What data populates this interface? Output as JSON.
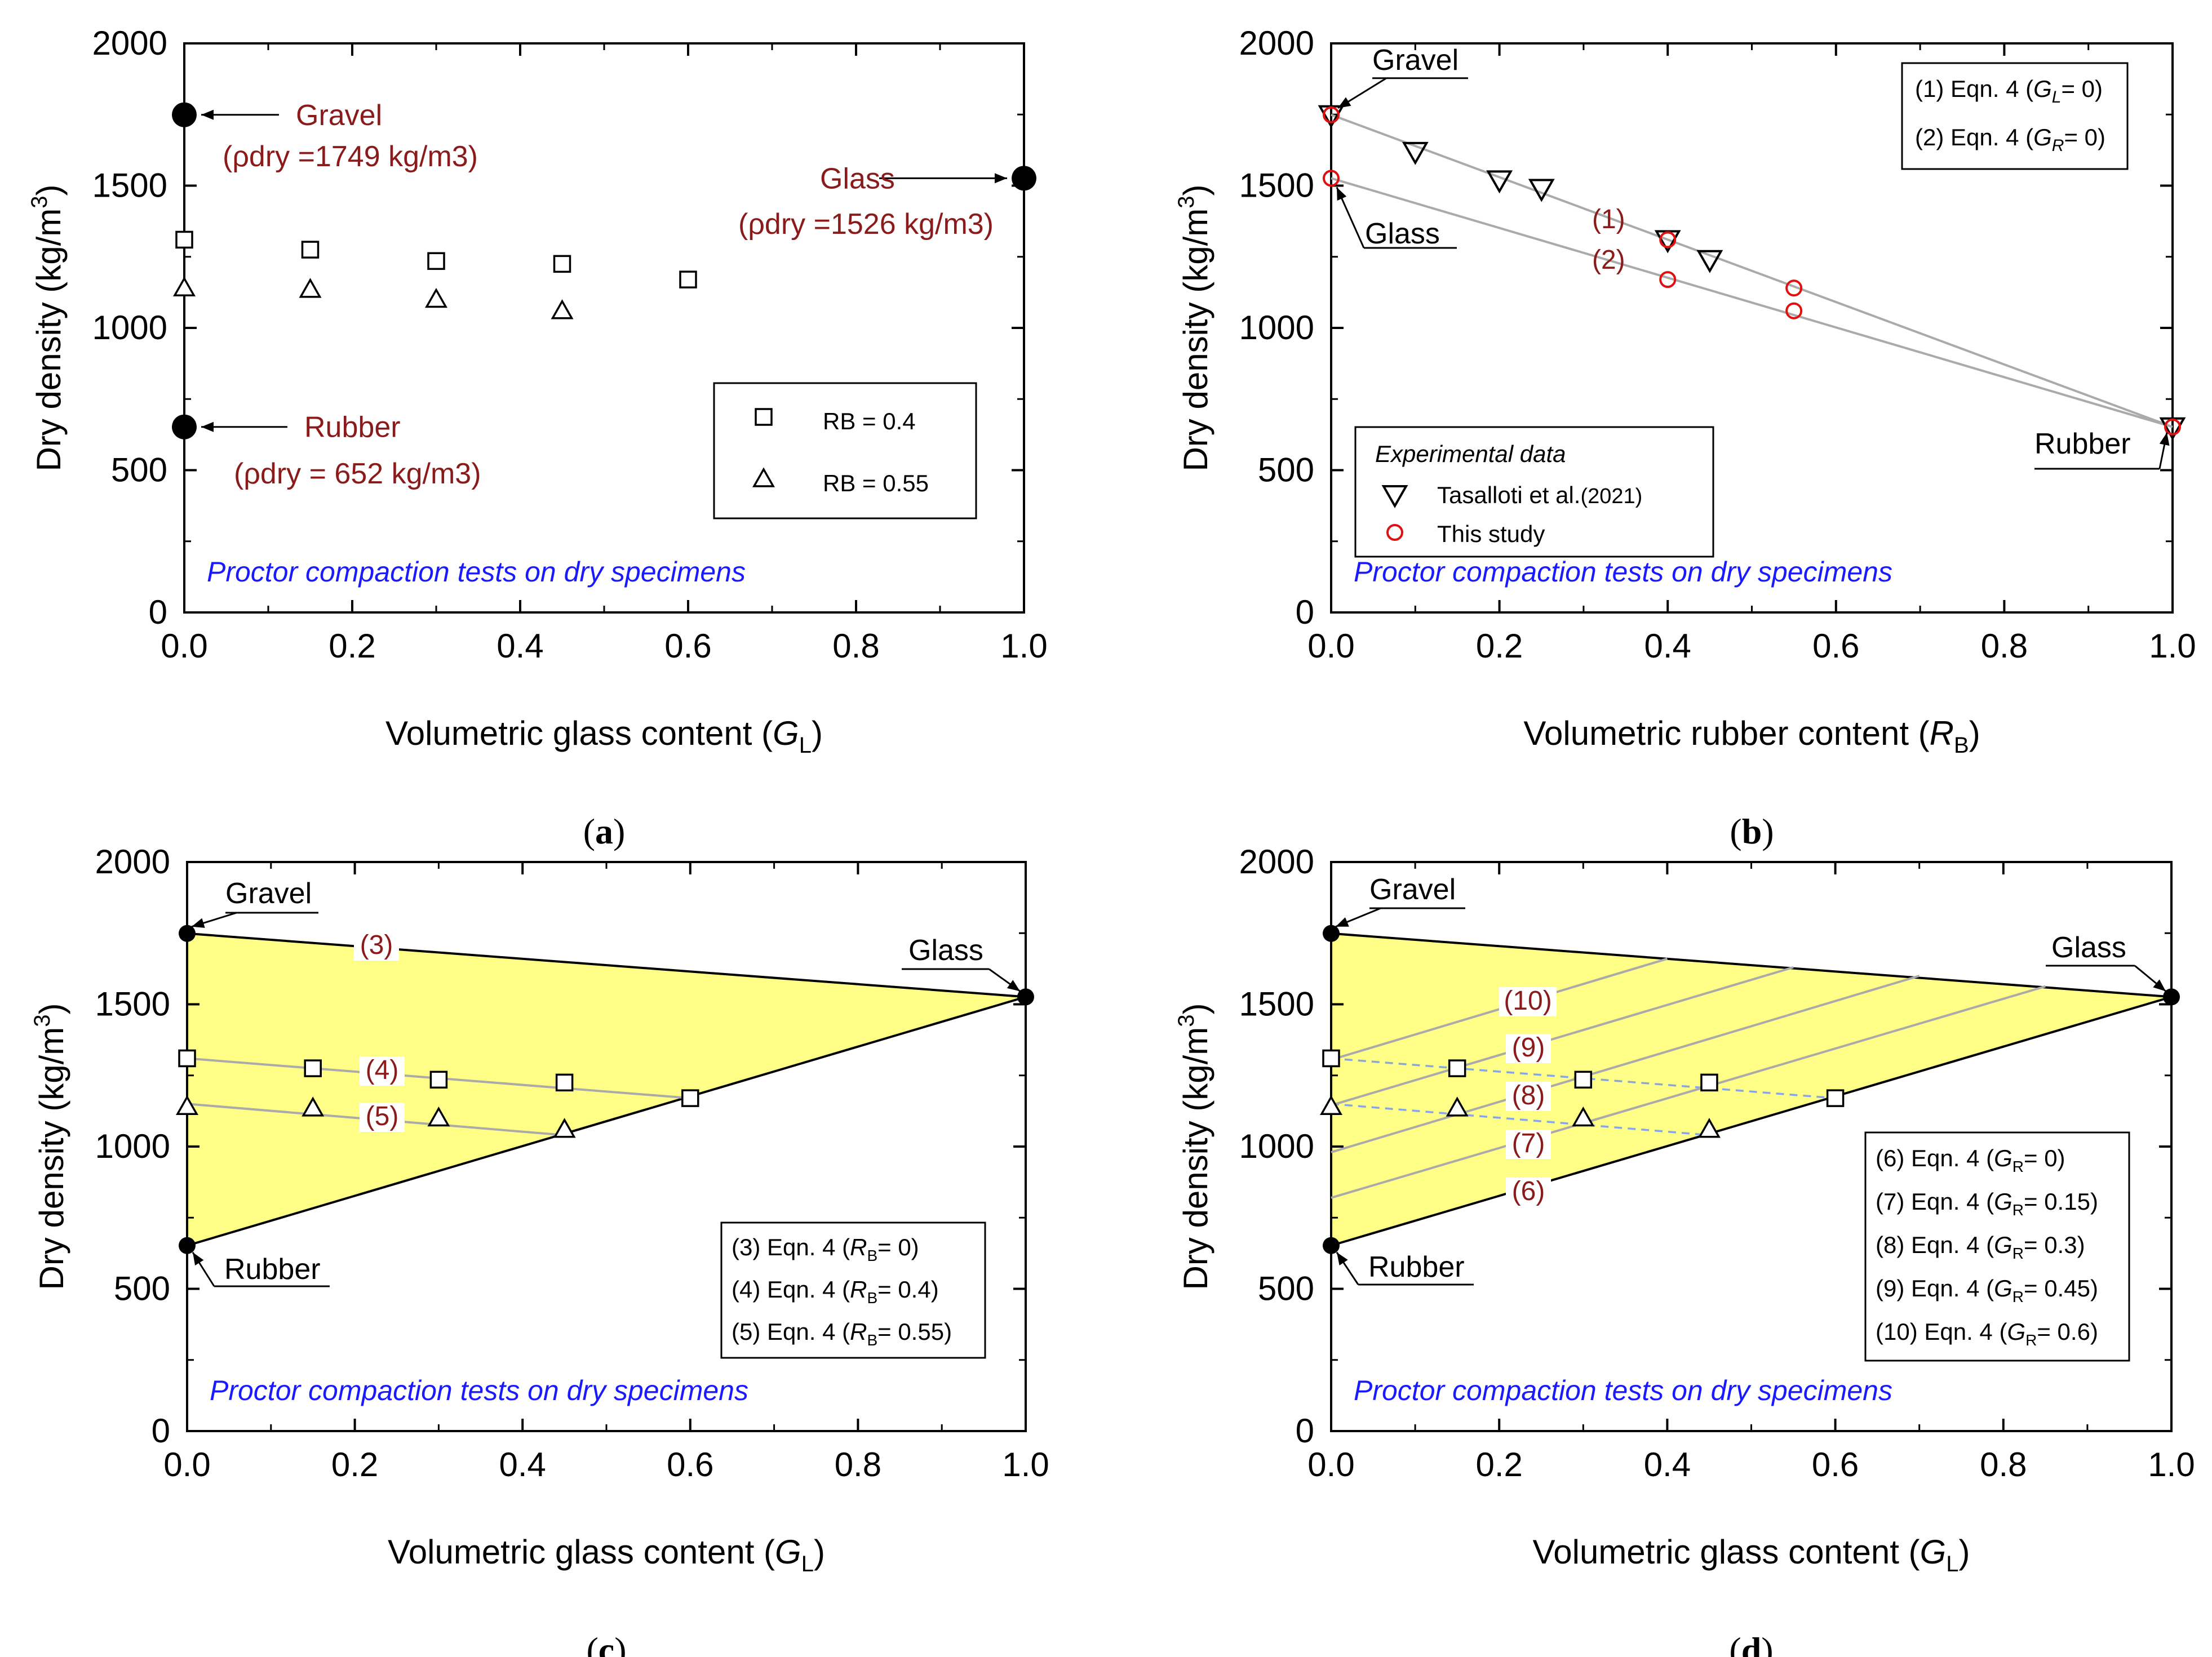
{
  "chart_data": [
    {
      "panel_label": "(a)",
      "type": "scatter",
      "xlabel": "Volumetric glass content (G_L)",
      "ylabel": "Dry density (kg/m^3)",
      "xlim": [
        0,
        1
      ],
      "ylim": [
        0,
        2000
      ],
      "xticks": [
        "0.0",
        "0.2",
        "0.4",
        "0.6",
        "0.8",
        "1.0"
      ],
      "yticks": [
        "0",
        "500",
        "1000",
        "1500",
        "2000"
      ],
      "note": "Proctor compaction tests on dry specimens",
      "materials": [
        {
          "name": "Gravel",
          "x": 0,
          "y": 1749,
          "label": "Gravel",
          "density_label": "(ρdry =1749 kg/m3)"
        },
        {
          "name": "Glass",
          "x": 1,
          "y": 1526,
          "label": "Glass",
          "density_label": "(ρdry =1526 kg/m3)"
        },
        {
          "name": "Rubber",
          "x": 0,
          "y": 652,
          "label": "Rubber",
          "density_label": "(ρdry = 652 kg/m3)"
        }
      ],
      "series": [
        {
          "name": "RB = 0.4",
          "marker": "square",
          "x": [
            0,
            0.15,
            0.3,
            0.45,
            0.6
          ],
          "y": [
            1310,
            1275,
            1235,
            1225,
            1170
          ]
        },
        {
          "name": "RB = 0.55",
          "marker": "triangle",
          "x": [
            0,
            0.15,
            0.3,
            0.45
          ],
          "y": [
            1140,
            1135,
            1100,
            1060
          ]
        }
      ],
      "legend": [
        "RB = 0.4",
        "RB = 0.55"
      ]
    },
    {
      "panel_label": "(b)",
      "type": "scatter",
      "xlabel": "Volumetric rubber content (R_B)",
      "ylabel": "Dry density (kg/m^3)",
      "xlim": [
        0,
        1
      ],
      "ylim": [
        0,
        2000
      ],
      "xticks": [
        "0.0",
        "0.2",
        "0.4",
        "0.6",
        "0.8",
        "1.0"
      ],
      "yticks": [
        "0",
        "500",
        "1000",
        "1500",
        "2000"
      ],
      "note": "Proctor compaction tests on dry specimens",
      "materials": [
        {
          "name": "Gravel",
          "x": 0,
          "y": 1749,
          "label": "Gravel"
        },
        {
          "name": "Glass",
          "x": 0,
          "y": 1526,
          "label": "Glass"
        },
        {
          "name": "Rubber",
          "x": 1,
          "y": 652,
          "label": "Rubber"
        }
      ],
      "lines": [
        {
          "label": "(1)",
          "legend": "(1) Eqn. 4  (GL= 0)",
          "x": [
            0,
            1
          ],
          "y": [
            1749,
            652
          ]
        },
        {
          "label": "(2)",
          "legend": "(2) Eqn. 4  (GR= 0)",
          "x": [
            0,
            1
          ],
          "y": [
            1526,
            652
          ]
        }
      ],
      "series": [
        {
          "name": "Tasalloti et al.(2021)",
          "marker": "inverted-triangle",
          "x": [
            0,
            0.1,
            0.2,
            0.25,
            0.4,
            0.45,
            1.0
          ],
          "y": [
            1749,
            1620,
            1520,
            1490,
            1310,
            1240,
            652
          ]
        },
        {
          "name": "This study",
          "marker": "open-circle-red",
          "x": [
            0,
            0,
            0.4,
            0.4,
            0.55,
            0.55,
            1.0
          ],
          "y": [
            1749,
            1526,
            1310,
            1170,
            1140,
            1060,
            652
          ]
        }
      ],
      "legend_title": "Experimental data",
      "legend": [
        "Tasalloti et al.(2021)",
        "This study"
      ]
    },
    {
      "panel_label": "(c)",
      "type": "scatter",
      "xlabel": "Volumetric glass content (G_L)",
      "ylabel": "Dry density (kg/m^3)",
      "xlim": [
        0,
        1
      ],
      "ylim": [
        0,
        2000
      ],
      "xticks": [
        "0.0",
        "0.2",
        "0.4",
        "0.6",
        "0.8",
        "1.0"
      ],
      "yticks": [
        "0",
        "500",
        "1000",
        "1500",
        "2000"
      ],
      "note": "Proctor compaction tests on dry specimens",
      "materials": [
        {
          "name": "Gravel",
          "x": 0,
          "y": 1749,
          "label": "Gravel"
        },
        {
          "name": "Glass",
          "x": 1,
          "y": 1526,
          "label": "Glass"
        },
        {
          "name": "Rubber",
          "x": 0,
          "y": 652,
          "label": "Rubber"
        }
      ],
      "region": "feasible triangle (yellow) between Gravel, Glass and Rubber",
      "lines": [
        {
          "label": "(3)",
          "legend": "(3) Eqn. 4 (RB= 0)",
          "x": [
            0,
            1
          ],
          "y": [
            1749,
            1526
          ]
        },
        {
          "label": "(4)",
          "legend": "(4) Eqn. 4 (RB= 0.4)",
          "x": [
            0,
            0.6
          ],
          "y": [
            1310,
            1170
          ]
        },
        {
          "label": "(5)",
          "legend": "(5) Eqn. 4 (RB= 0.55)",
          "x": [
            0,
            0.45
          ],
          "y": [
            1150,
            1040
          ]
        }
      ],
      "series": [
        {
          "name": "RB = 0.4",
          "marker": "square",
          "x": [
            0,
            0.15,
            0.3,
            0.45,
            0.6
          ],
          "y": [
            1310,
            1275,
            1235,
            1225,
            1170
          ]
        },
        {
          "name": "RB = 0.55",
          "marker": "triangle",
          "x": [
            0,
            0.15,
            0.3,
            0.45
          ],
          "y": [
            1140,
            1135,
            1100,
            1060
          ]
        }
      ]
    },
    {
      "panel_label": "(d)",
      "type": "scatter",
      "xlabel": "Volumetric glass content (G_L)",
      "ylabel": "Dry density (kg/m^3)",
      "xlim": [
        0,
        1
      ],
      "ylim": [
        0,
        2000
      ],
      "xticks": [
        "0.0",
        "0.2",
        "0.4",
        "0.6",
        "0.8",
        "1.0"
      ],
      "yticks": [
        "0",
        "500",
        "1000",
        "1500",
        "2000"
      ],
      "note": "Proctor compaction tests on dry specimens",
      "materials": [
        {
          "name": "Gravel",
          "x": 0,
          "y": 1749,
          "label": "Gravel"
        },
        {
          "name": "Glass",
          "x": 1,
          "y": 1526,
          "label": "Glass"
        },
        {
          "name": "Rubber",
          "x": 0,
          "y": 652,
          "label": "Rubber"
        }
      ],
      "region": "feasible triangle (yellow) between Gravel, Glass and Rubber",
      "lines": [
        {
          "label": "(6)",
          "legend": "(6) Eqn. 4 (GR= 0)",
          "x": [
            0,
            1
          ],
          "y": [
            652,
            1526
          ]
        },
        {
          "label": "(7)",
          "legend": "(7) Eqn. 4 (GR= 0.15)",
          "x": [
            0,
            0.85
          ],
          "y": [
            820,
            1563
          ]
        },
        {
          "label": "(8)",
          "legend": "(8) Eqn. 4 (GR= 0.3)",
          "x": [
            0,
            0.7
          ],
          "y": [
            980,
            1600
          ]
        },
        {
          "label": "(9)",
          "legend": "(9) Eqn. 4 (GR= 0.45)",
          "x": [
            0,
            0.55
          ],
          "y": [
            1145,
            1630
          ]
        },
        {
          "label": "(10)",
          "legend": "(10) Eqn. 4 (GR= 0.6)",
          "x": [
            0,
            0.4
          ],
          "y": [
            1305,
            1660
          ]
        }
      ],
      "dashed_lines": [
        {
          "x": [
            0,
            0.6
          ],
          "y": [
            1310,
            1170
          ]
        },
        {
          "x": [
            0,
            0.45
          ],
          "y": [
            1150,
            1040
          ]
        }
      ],
      "series": [
        {
          "name": "RB = 0.4",
          "marker": "square",
          "x": [
            0,
            0.15,
            0.3,
            0.45,
            0.6
          ],
          "y": [
            1310,
            1275,
            1235,
            1225,
            1170
          ]
        },
        {
          "name": "RB = 0.55",
          "marker": "triangle",
          "x": [
            0,
            0.15,
            0.3,
            0.45
          ],
          "y": [
            1140,
            1135,
            1100,
            1060
          ]
        }
      ]
    }
  ]
}
